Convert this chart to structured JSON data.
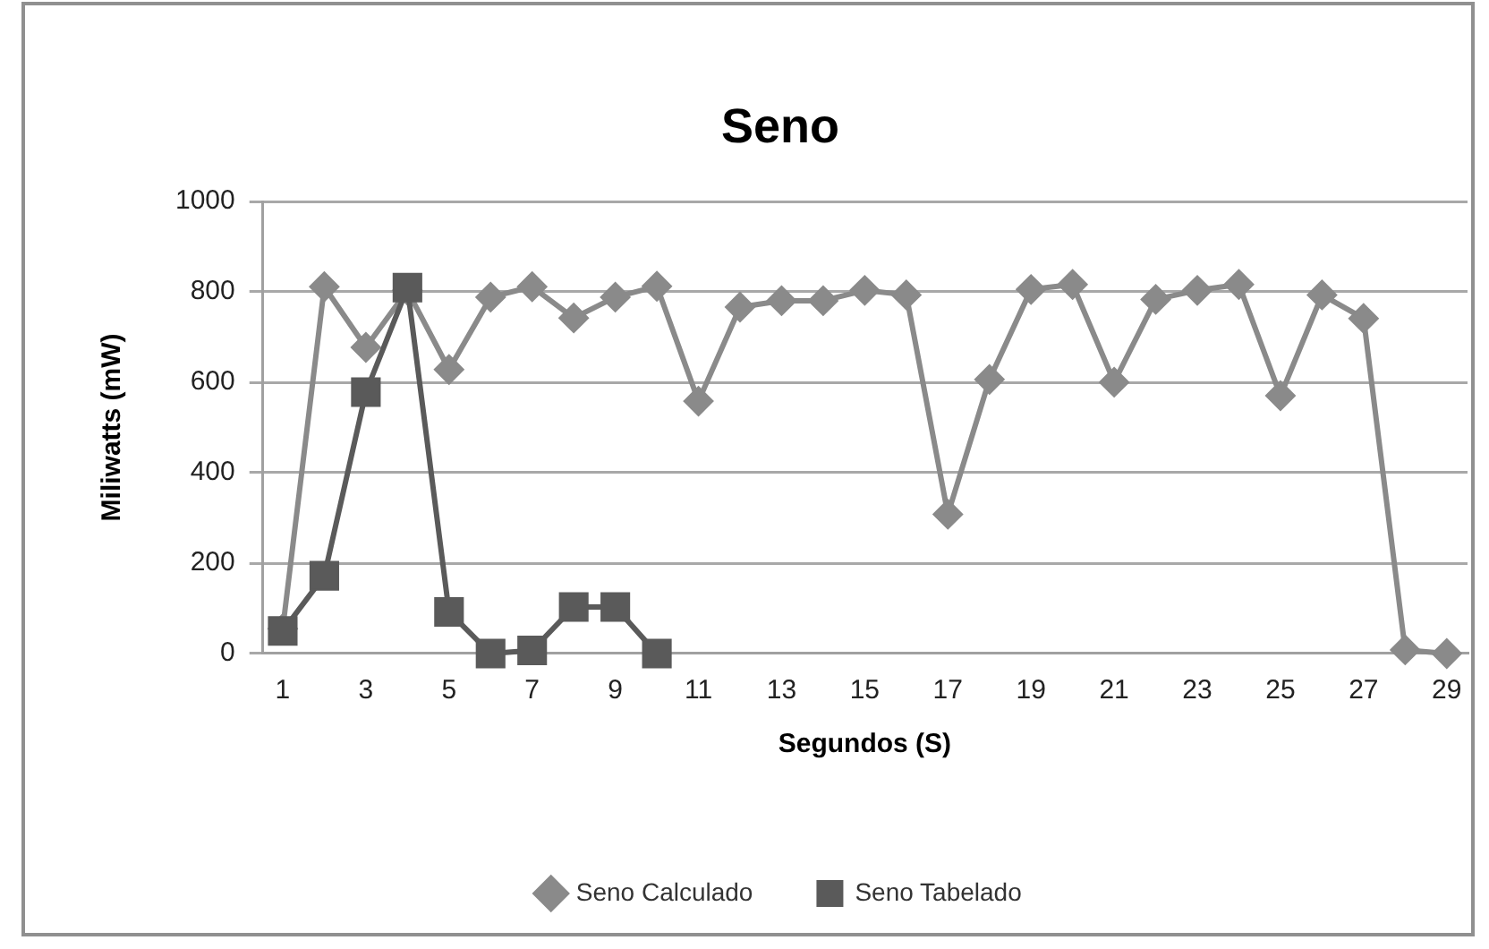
{
  "chart_data": {
    "type": "line",
    "title": "Seno",
    "xlabel": "Segundos (S)",
    "ylabel": "Miliwatts (mW)",
    "x": [
      1,
      2,
      3,
      4,
      5,
      6,
      7,
      8,
      9,
      10,
      11,
      12,
      13,
      14,
      15,
      16,
      17,
      18,
      19,
      20,
      21,
      22,
      23,
      24,
      25,
      26,
      27,
      28,
      29
    ],
    "series": [
      {
        "name": "Seno Calculado",
        "color": "#8a8a8a",
        "marker": "diamond",
        "values": [
          55,
          811,
          677,
          803,
          628,
          788,
          811,
          742,
          788,
          812,
          558,
          766,
          780,
          780,
          803,
          793,
          308,
          606,
          805,
          816,
          600,
          783,
          803,
          816,
          570,
          793,
          741,
          8,
          0
        ]
      },
      {
        "name": "Seno Tabelado",
        "color": "#5a5a5a",
        "marker": "square",
        "x": [
          1,
          2,
          3,
          4,
          5,
          6,
          7,
          8,
          9,
          10
        ],
        "values": [
          50,
          172,
          578,
          809,
          92,
          0,
          7,
          103,
          103,
          0
        ]
      }
    ],
    "xlim": [
      0.5,
      29.5
    ],
    "xticks": [
      1,
      3,
      5,
      7,
      9,
      11,
      13,
      15,
      17,
      19,
      21,
      23,
      25,
      27,
      29
    ],
    "ylim": [
      0,
      1000
    ],
    "yticks": [
      0,
      200,
      400,
      600,
      800,
      1000
    ],
    "grid": "y",
    "legend": "bottom",
    "line_style": "solid"
  }
}
